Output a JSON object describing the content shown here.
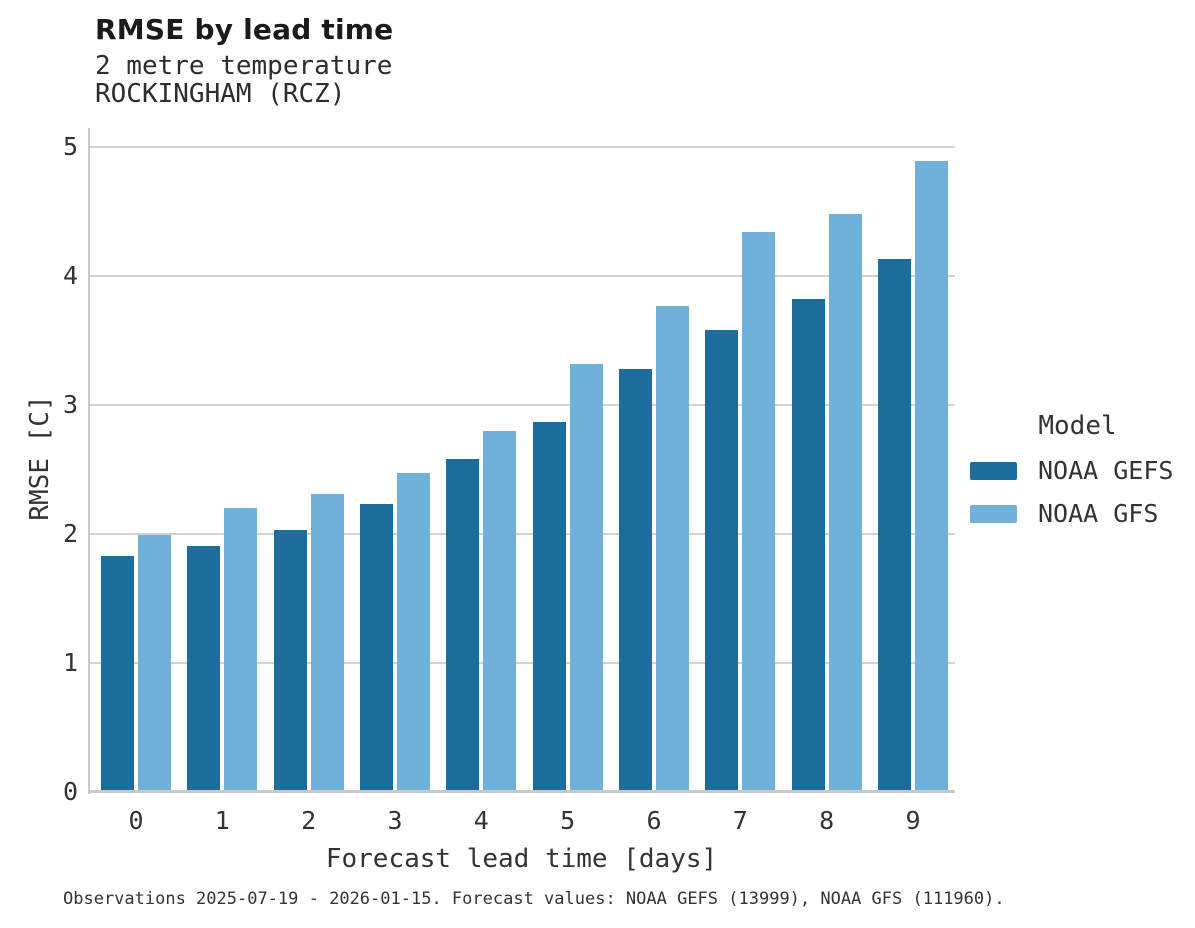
{
  "chart_data": {
    "type": "bar",
    "title": "RMSE by lead time",
    "subtitle_variable": "2 metre temperature",
    "subtitle_station": "ROCKINGHAM (RCZ)",
    "xlabel": "Forecast lead time [days]",
    "ylabel": "RMSE [C]",
    "categories": [
      "0",
      "1",
      "2",
      "3",
      "4",
      "5",
      "6",
      "7",
      "8",
      "9"
    ],
    "series": [
      {
        "name": "NOAA GEFS",
        "color": "#1d6d9c",
        "values": [
          1.83,
          1.91,
          2.03,
          2.23,
          2.58,
          2.87,
          3.28,
          3.58,
          3.82,
          4.13
        ]
      },
      {
        "name": "NOAA GFS",
        "color": "#6fb1d9",
        "values": [
          1.99,
          2.2,
          2.31,
          2.47,
          2.8,
          3.32,
          3.77,
          4.34,
          4.48,
          4.89
        ]
      }
    ],
    "ylim": [
      0,
      5.15
    ],
    "yticks": [
      0,
      1,
      2,
      3,
      4,
      5
    ],
    "grid": "horizontal",
    "legend_title": "Model",
    "legend_position": "right",
    "footnote": "Observations 2025-07-19 - 2026-01-15. Forecast values: NOAA GEFS (13999), NOAA GFS (111960)."
  },
  "colors": {
    "background": "#ffffff",
    "gridline": "#d2d2d2",
    "spine": "#c9c9c9",
    "title_text": "#1a1a1a",
    "text": "#333333"
  }
}
